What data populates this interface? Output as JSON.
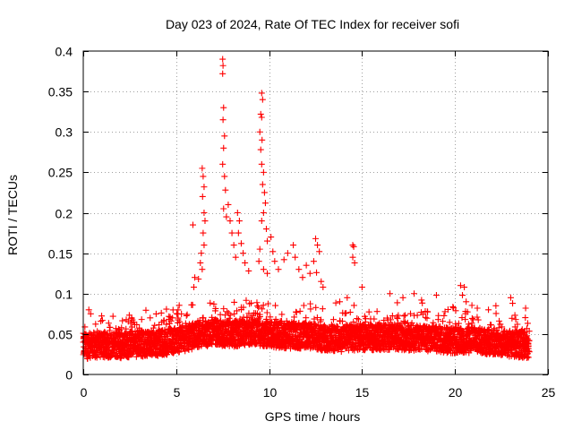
{
  "chart_data": {
    "type": "scatter",
    "title": "Day 023 of 2024, Rate Of TEC Index for receiver sofi",
    "xlabel": "GPS time / hours",
    "ylabel": "ROTI / TECUs",
    "xlim": [
      0,
      25
    ],
    "ylim": [
      0,
      0.4
    ],
    "xticks": [
      0,
      5,
      10,
      15,
      20,
      25
    ],
    "yticks": [
      0,
      0.05,
      0.1,
      0.15,
      0.2,
      0.25,
      0.3,
      0.35,
      0.4
    ],
    "xtick_labels": [
      "0",
      "5",
      "10",
      "15",
      "20",
      "25"
    ],
    "ytick_labels": [
      "0",
      "0.05",
      "0.1",
      "0.15",
      "0.2",
      "0.25",
      "0.3",
      "0.35",
      "0.4"
    ],
    "grid": true,
    "marker": "+",
    "color": "#ff0000",
    "series": [
      {
        "name": "ROTI",
        "baseline_profile": [
          {
            "x": 0,
            "y": 0.035
          },
          {
            "x": 1,
            "y": 0.037
          },
          {
            "x": 2,
            "y": 0.036
          },
          {
            "x": 3,
            "y": 0.038
          },
          {
            "x": 4,
            "y": 0.039
          },
          {
            "x": 5,
            "y": 0.042
          },
          {
            "x": 6,
            "y": 0.048
          },
          {
            "x": 7,
            "y": 0.052
          },
          {
            "x": 8,
            "y": 0.05
          },
          {
            "x": 9,
            "y": 0.053
          },
          {
            "x": 10,
            "y": 0.05
          },
          {
            "x": 11,
            "y": 0.048
          },
          {
            "x": 12,
            "y": 0.048
          },
          {
            "x": 13,
            "y": 0.045
          },
          {
            "x": 14,
            "y": 0.044
          },
          {
            "x": 15,
            "y": 0.046
          },
          {
            "x": 16,
            "y": 0.046
          },
          {
            "x": 17,
            "y": 0.046
          },
          {
            "x": 18,
            "y": 0.045
          },
          {
            "x": 19,
            "y": 0.044
          },
          {
            "x": 20,
            "y": 0.042
          },
          {
            "x": 21,
            "y": 0.043
          },
          {
            "x": 22,
            "y": 0.04
          },
          {
            "x": 23,
            "y": 0.038
          },
          {
            "x": 24,
            "y": 0.036
          }
        ],
        "points": [
          {
            "x": 7.5,
            "y": 0.39
          },
          {
            "x": 7.52,
            "y": 0.382
          },
          {
            "x": 7.5,
            "y": 0.372
          },
          {
            "x": 7.55,
            "y": 0.33
          },
          {
            "x": 7.52,
            "y": 0.315
          },
          {
            "x": 7.6,
            "y": 0.295
          },
          {
            "x": 7.55,
            "y": 0.28
          },
          {
            "x": 7.5,
            "y": 0.26
          },
          {
            "x": 7.6,
            "y": 0.245
          },
          {
            "x": 7.65,
            "y": 0.228
          },
          {
            "x": 7.55,
            "y": 0.205
          },
          {
            "x": 7.7,
            "y": 0.195
          },
          {
            "x": 7.8,
            "y": 0.21
          },
          {
            "x": 7.9,
            "y": 0.19
          },
          {
            "x": 8.0,
            "y": 0.175
          },
          {
            "x": 8.1,
            "y": 0.16
          },
          {
            "x": 8.2,
            "y": 0.145
          },
          {
            "x": 6.4,
            "y": 0.255
          },
          {
            "x": 6.45,
            "y": 0.245
          },
          {
            "x": 6.5,
            "y": 0.232
          },
          {
            "x": 6.42,
            "y": 0.22
          },
          {
            "x": 6.5,
            "y": 0.2
          },
          {
            "x": 6.55,
            "y": 0.19
          },
          {
            "x": 6.45,
            "y": 0.175
          },
          {
            "x": 6.5,
            "y": 0.16
          },
          {
            "x": 6.35,
            "y": 0.15
          },
          {
            "x": 6.3,
            "y": 0.138
          },
          {
            "x": 6.4,
            "y": 0.13
          },
          {
            "x": 5.9,
            "y": 0.185
          },
          {
            "x": 6.0,
            "y": 0.12
          },
          {
            "x": 5.95,
            "y": 0.108
          },
          {
            "x": 6.2,
            "y": 0.118
          },
          {
            "x": 9.6,
            "y": 0.348
          },
          {
            "x": 9.65,
            "y": 0.34
          },
          {
            "x": 9.55,
            "y": 0.322
          },
          {
            "x": 9.6,
            "y": 0.318
          },
          {
            "x": 9.5,
            "y": 0.3
          },
          {
            "x": 9.62,
            "y": 0.29
          },
          {
            "x": 9.55,
            "y": 0.278
          },
          {
            "x": 9.6,
            "y": 0.26
          },
          {
            "x": 9.7,
            "y": 0.25
          },
          {
            "x": 9.65,
            "y": 0.235
          },
          {
            "x": 9.75,
            "y": 0.225
          },
          {
            "x": 9.8,
            "y": 0.212
          },
          {
            "x": 9.7,
            "y": 0.2
          },
          {
            "x": 9.6,
            "y": 0.19
          },
          {
            "x": 9.85,
            "y": 0.18
          },
          {
            "x": 9.9,
            "y": 0.165
          },
          {
            "x": 9.5,
            "y": 0.155
          },
          {
            "x": 9.45,
            "y": 0.14
          },
          {
            "x": 9.7,
            "y": 0.13
          },
          {
            "x": 9.9,
            "y": 0.125
          },
          {
            "x": 8.3,
            "y": 0.2
          },
          {
            "x": 8.4,
            "y": 0.19
          },
          {
            "x": 8.35,
            "y": 0.175
          },
          {
            "x": 8.5,
            "y": 0.162
          },
          {
            "x": 8.6,
            "y": 0.15
          },
          {
            "x": 8.7,
            "y": 0.138
          },
          {
            "x": 8.9,
            "y": 0.128
          },
          {
            "x": 10.1,
            "y": 0.17
          },
          {
            "x": 10.2,
            "y": 0.152
          },
          {
            "x": 10.3,
            "y": 0.14
          },
          {
            "x": 10.5,
            "y": 0.13
          },
          {
            "x": 10.8,
            "y": 0.142
          },
          {
            "x": 11.0,
            "y": 0.15
          },
          {
            "x": 11.3,
            "y": 0.16
          },
          {
            "x": 11.4,
            "y": 0.145
          },
          {
            "x": 11.6,
            "y": 0.13
          },
          {
            "x": 11.8,
            "y": 0.12
          },
          {
            "x": 12.0,
            "y": 0.135
          },
          {
            "x": 12.2,
            "y": 0.125
          },
          {
            "x": 12.5,
            "y": 0.168
          },
          {
            "x": 12.6,
            "y": 0.16
          },
          {
            "x": 12.7,
            "y": 0.152
          },
          {
            "x": 12.4,
            "y": 0.14
          },
          {
            "x": 12.55,
            "y": 0.126
          },
          {
            "x": 12.8,
            "y": 0.115
          },
          {
            "x": 12.9,
            "y": 0.108
          },
          {
            "x": 14.5,
            "y": 0.16
          },
          {
            "x": 14.55,
            "y": 0.158
          },
          {
            "x": 14.5,
            "y": 0.145
          },
          {
            "x": 14.6,
            "y": 0.138
          },
          {
            "x": 15.0,
            "y": 0.108
          },
          {
            "x": 14.2,
            "y": 0.095
          },
          {
            "x": 13.8,
            "y": 0.09
          },
          {
            "x": 16.5,
            "y": 0.1
          },
          {
            "x": 17.2,
            "y": 0.095
          },
          {
            "x": 17.8,
            "y": 0.1
          },
          {
            "x": 18.2,
            "y": 0.092
          },
          {
            "x": 19.0,
            "y": 0.098
          },
          {
            "x": 20.3,
            "y": 0.11
          },
          {
            "x": 20.5,
            "y": 0.108
          },
          {
            "x": 20.4,
            "y": 0.098
          },
          {
            "x": 20.6,
            "y": 0.09
          },
          {
            "x": 21.2,
            "y": 0.082
          },
          {
            "x": 21.8,
            "y": 0.08
          },
          {
            "x": 22.2,
            "y": 0.085
          },
          {
            "x": 23.0,
            "y": 0.095
          },
          {
            "x": 23.1,
            "y": 0.088
          },
          {
            "x": 23.8,
            "y": 0.082
          },
          {
            "x": 0.3,
            "y": 0.08
          },
          {
            "x": 0.4,
            "y": 0.075
          },
          {
            "x": 1.6,
            "y": 0.072
          },
          {
            "x": 2.6,
            "y": 0.07
          },
          {
            "x": 3.6,
            "y": 0.07
          },
          {
            "x": 4.2,
            "y": 0.076
          },
          {
            "x": 4.8,
            "y": 0.07
          }
        ]
      }
    ]
  }
}
